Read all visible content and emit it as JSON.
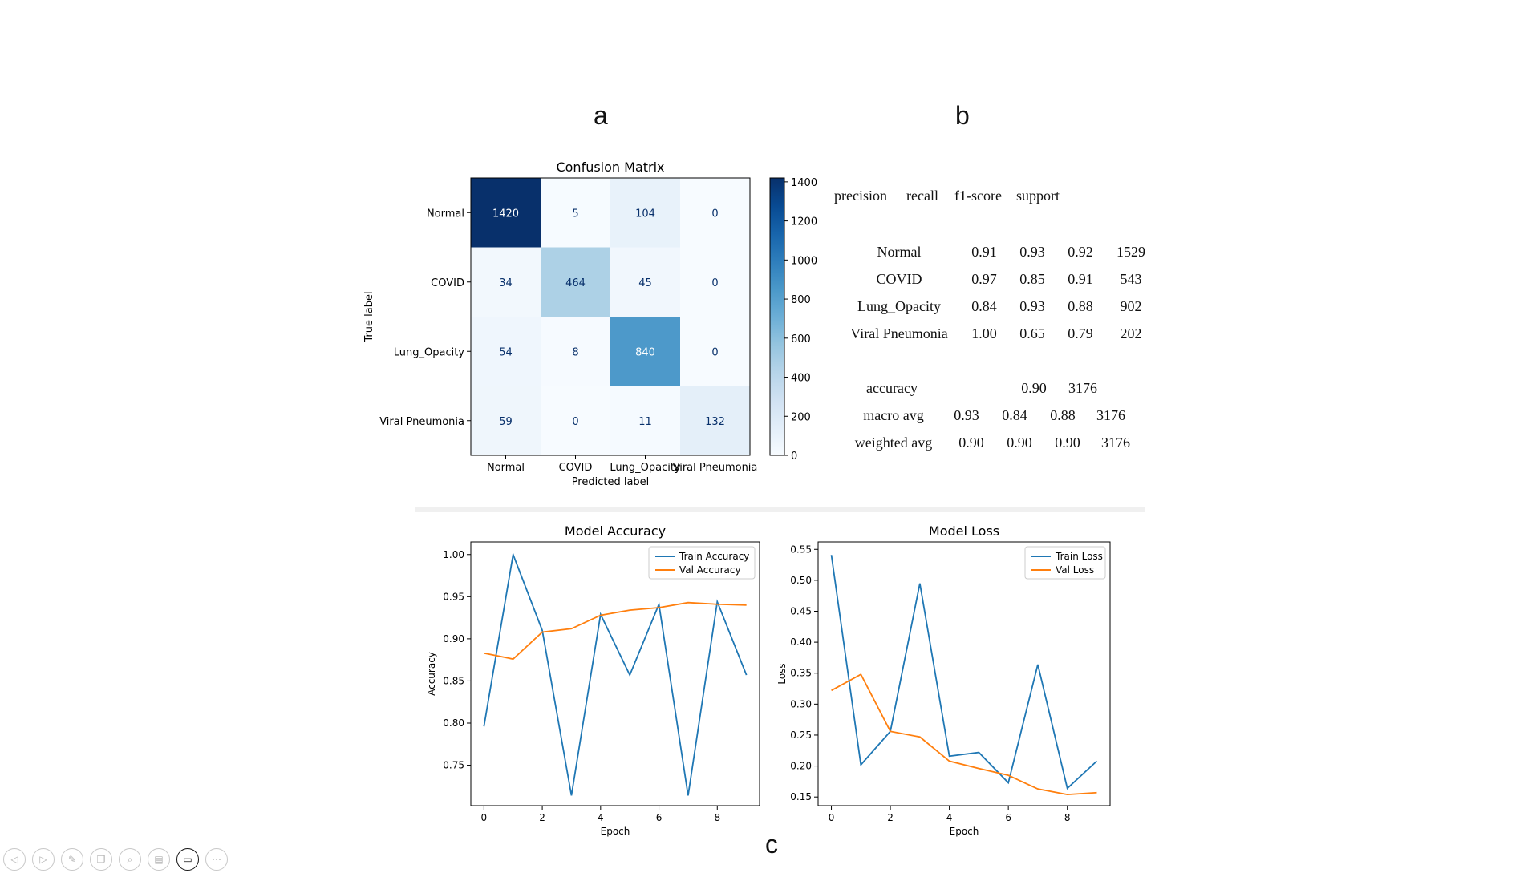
{
  "panel_labels": {
    "a": "a",
    "b": "b",
    "c": "c"
  },
  "colors": {
    "train": "#1f77b4",
    "val": "#ff7f0e",
    "cm_low": "#f7fbff",
    "cm_high": "#08306b",
    "divider": "#f0f0f0"
  },
  "chart_data": [
    {
      "type": "heatmap",
      "title": "Confusion Matrix",
      "xlabel": "Predicted label",
      "ylabel": "True label",
      "x_categories": [
        "Normal",
        "COVID",
        "Lung_Opacity",
        "Viral Pneumonia"
      ],
      "y_categories": [
        "Normal",
        "COVID",
        "Lung_Opacity",
        "Viral Pneumonia"
      ],
      "values": [
        [
          1420,
          5,
          104,
          0
        ],
        [
          34,
          464,
          45,
          0
        ],
        [
          54,
          8,
          840,
          0
        ],
        [
          59,
          0,
          11,
          132
        ]
      ],
      "colorbar": {
        "min": 0,
        "max": 1420,
        "ticks": [
          0,
          200,
          400,
          600,
          800,
          1000,
          1200,
          1400
        ],
        "colormap": "Blues"
      }
    },
    {
      "type": "line",
      "title": "Model Accuracy",
      "xlabel": "Epoch",
      "ylabel": "Accuracy",
      "x": [
        0,
        1,
        2,
        3,
        4,
        5,
        6,
        7,
        8,
        9
      ],
      "xlim": [
        -0.45,
        9.45
      ],
      "ylim": [
        0.702,
        1.015
      ],
      "xticks": [
        0,
        2,
        4,
        6,
        8
      ],
      "yticks": [
        "0.75",
        "0.80",
        "0.85",
        "0.90",
        "0.95",
        "1.00"
      ],
      "legend": "top-right",
      "series": [
        {
          "name": "Train Accuracy",
          "values": [
            0.796,
            1.0,
            0.91,
            0.714,
            0.929,
            0.857,
            0.941,
            0.714,
            0.944,
            0.857
          ]
        },
        {
          "name": "Val Accuracy",
          "values": [
            0.883,
            0.876,
            0.908,
            0.912,
            0.928,
            0.934,
            0.937,
            0.943,
            0.941,
            0.94
          ]
        }
      ]
    },
    {
      "type": "line",
      "title": "Model Loss",
      "xlabel": "Epoch",
      "ylabel": "Loss",
      "x": [
        0,
        1,
        2,
        3,
        4,
        5,
        6,
        7,
        8,
        9
      ],
      "xlim": [
        -0.45,
        9.45
      ],
      "ylim": [
        0.136,
        0.562
      ],
      "xticks": [
        0,
        2,
        4,
        6,
        8
      ],
      "yticks": [
        "0.15",
        "0.20",
        "0.25",
        "0.30",
        "0.35",
        "0.40",
        "0.45",
        "0.50",
        "0.55"
      ],
      "legend": "top-right",
      "series": [
        {
          "name": "Train Loss",
          "values": [
            0.541,
            0.202,
            0.256,
            0.495,
            0.216,
            0.222,
            0.173,
            0.364,
            0.164,
            0.208
          ]
        },
        {
          "name": "Val Loss",
          "values": [
            0.322,
            0.348,
            0.256,
            0.247,
            0.208,
            0.196,
            0.185,
            0.163,
            0.154,
            0.157
          ]
        }
      ]
    }
  ],
  "classification_report": {
    "header": [
      "precision",
      "recall",
      "f1-score",
      "support"
    ],
    "rows": [
      {
        "label": "Normal",
        "precision": "0.91",
        "recall": "0.93",
        "f1": "0.92",
        "support": "1529"
      },
      {
        "label": "COVID",
        "precision": "0.97",
        "recall": "0.85",
        "f1": "0.91",
        "support": "543"
      },
      {
        "label": "Lung_Opacity",
        "precision": "0.84",
        "recall": "0.93",
        "f1": "0.88",
        "support": "902"
      },
      {
        "label": "Viral Pneumonia",
        "precision": "1.00",
        "recall": "0.65",
        "f1": "0.79",
        "support": "202"
      }
    ],
    "accuracy": {
      "label": "accuracy",
      "value": "0.90",
      "support": "3176"
    },
    "macro_avg": {
      "label": "macro avg",
      "precision": "0.93",
      "recall": "0.84",
      "f1": "0.88",
      "support": "3176"
    },
    "weighted_avg": {
      "label": "weighted avg",
      "precision": "0.90",
      "recall": "0.90",
      "f1": "0.90",
      "support": "3176"
    }
  },
  "toolbar": {
    "buttons": [
      {
        "icon": "arrow-left-icon",
        "glyph": "◁"
      },
      {
        "icon": "arrow-right-icon",
        "glyph": "▷"
      },
      {
        "icon": "pen-icon",
        "glyph": "✎"
      },
      {
        "icon": "slides-icon",
        "glyph": "❐"
      },
      {
        "icon": "zoom-icon",
        "glyph": "⌕"
      },
      {
        "icon": "subtitles-icon",
        "glyph": "▤"
      },
      {
        "icon": "camera-icon",
        "glyph": "▭"
      },
      {
        "icon": "more-icon",
        "glyph": "⋯"
      }
    ]
  }
}
